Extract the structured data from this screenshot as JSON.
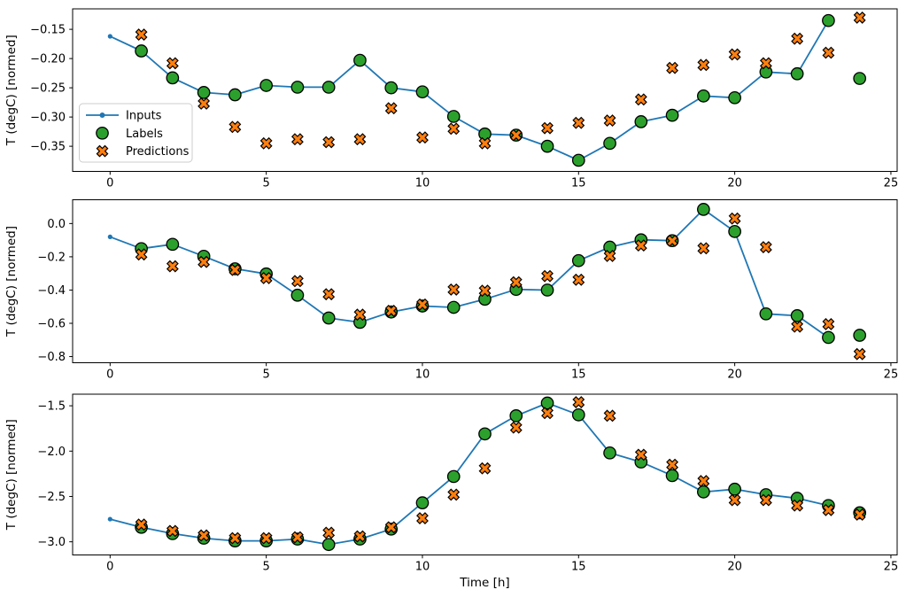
{
  "figure": {
    "xlabel": "Time [h]",
    "ylabel": "T (degC) [normed]",
    "background_color": "#ffffff",
    "colors": {
      "inputs_line": "#1f77b4",
      "labels_marker": "#2ca02c",
      "predictions_marker": "#ff7f0e",
      "marker_edge": "#000000",
      "legend_border": "#cccccc"
    },
    "legend": {
      "items": [
        {
          "label": "Inputs",
          "marker": "line-with-dot",
          "color": "#1f77b4"
        },
        {
          "label": "Labels",
          "marker": "circle",
          "color": "#2ca02c"
        },
        {
          "label": "Predictions",
          "marker": "thick-x",
          "color": "#ff7f0e"
        }
      ],
      "position": "left-middle-of-first-subplot"
    }
  },
  "chart_data": [
    {
      "type": "line",
      "title": "",
      "ylabel": "T (degC) [normed]",
      "xlim": [
        -1.2,
        25.2
      ],
      "ylim": [
        -0.393,
        -0.115
      ],
      "xticks": [
        0,
        5,
        10,
        15,
        20,
        25
      ],
      "xtick_labels": [
        "0",
        "5",
        "10",
        "15",
        "20",
        "25"
      ],
      "yticks": [
        -0.15,
        -0.2,
        -0.25,
        -0.3,
        -0.35
      ],
      "ytick_labels": [
        "−0.15",
        "−0.20",
        "−0.25",
        "−0.30",
        "−0.35"
      ],
      "grid": false,
      "legend_visible": true,
      "series": [
        {
          "name": "Inputs",
          "kind": "line",
          "x": [
            0,
            1,
            2,
            3,
            4,
            5,
            6,
            7,
            8,
            9,
            10,
            11,
            12,
            13,
            14,
            15,
            16,
            17,
            18,
            19,
            20,
            21,
            22,
            23
          ],
          "y": [
            -0.162,
            -0.187,
            -0.233,
            -0.258,
            -0.262,
            -0.246,
            -0.249,
            -0.249,
            -0.203,
            -0.25,
            -0.257,
            -0.299,
            -0.329,
            -0.331,
            -0.35,
            -0.374,
            -0.345,
            -0.308,
            -0.297,
            -0.264,
            -0.267,
            -0.223,
            -0.226,
            -0.135
          ]
        },
        {
          "name": "Labels",
          "kind": "scatter-circle",
          "x": [
            1,
            2,
            3,
            4,
            5,
            6,
            7,
            8,
            9,
            10,
            11,
            12,
            13,
            14,
            15,
            16,
            17,
            18,
            19,
            20,
            21,
            22,
            23,
            24
          ],
          "y": [
            -0.187,
            -0.233,
            -0.258,
            -0.262,
            -0.246,
            -0.249,
            -0.249,
            -0.203,
            -0.25,
            -0.257,
            -0.299,
            -0.329,
            -0.331,
            -0.35,
            -0.374,
            -0.345,
            -0.308,
            -0.297,
            -0.264,
            -0.267,
            -0.223,
            -0.226,
            -0.135,
            -0.234
          ]
        },
        {
          "name": "Predictions",
          "kind": "scatter-x",
          "x": [
            1,
            2,
            3,
            4,
            5,
            6,
            7,
            8,
            9,
            10,
            11,
            12,
            13,
            14,
            15,
            16,
            17,
            18,
            19,
            20,
            21,
            22,
            23,
            24
          ],
          "y": [
            -0.159,
            -0.208,
            -0.277,
            -0.317,
            -0.345,
            -0.338,
            -0.343,
            -0.338,
            -0.285,
            -0.335,
            -0.32,
            -0.345,
            -0.331,
            -0.319,
            -0.31,
            -0.306,
            -0.27,
            -0.216,
            -0.211,
            -0.193,
            -0.208,
            -0.166,
            -0.19,
            -0.13
          ]
        }
      ]
    },
    {
      "type": "line",
      "title": "",
      "ylabel": "T (degC) [normed]",
      "xlim": [
        -1.2,
        25.2
      ],
      "ylim": [
        -0.837,
        0.143
      ],
      "xticks": [
        0,
        5,
        10,
        15,
        20,
        25
      ],
      "xtick_labels": [
        "0",
        "5",
        "10",
        "15",
        "20",
        "25"
      ],
      "yticks": [
        0.0,
        -0.2,
        -0.4,
        -0.6,
        -0.8
      ],
      "ytick_labels": [
        "0.0",
        "−0.2",
        "−0.4",
        "−0.6",
        "−0.8"
      ],
      "grid": false,
      "legend_visible": false,
      "series": [
        {
          "name": "Inputs",
          "kind": "line",
          "x": [
            0,
            1,
            2,
            3,
            4,
            5,
            6,
            7,
            8,
            9,
            10,
            11,
            12,
            13,
            14,
            15,
            16,
            17,
            18,
            19,
            20,
            21,
            22,
            23
          ],
          "y": [
            -0.08,
            -0.151,
            -0.125,
            -0.197,
            -0.272,
            -0.303,
            -0.431,
            -0.568,
            -0.594,
            -0.532,
            -0.496,
            -0.504,
            -0.455,
            -0.396,
            -0.4,
            -0.223,
            -0.142,
            -0.098,
            -0.103,
            0.085,
            -0.048,
            -0.543,
            -0.554,
            -0.685
          ]
        },
        {
          "name": "Labels",
          "kind": "scatter-circle",
          "x": [
            1,
            2,
            3,
            4,
            5,
            6,
            7,
            8,
            9,
            10,
            11,
            12,
            13,
            14,
            15,
            16,
            17,
            18,
            19,
            20,
            21,
            22,
            23,
            24
          ],
          "y": [
            -0.151,
            -0.125,
            -0.197,
            -0.272,
            -0.303,
            -0.431,
            -0.568,
            -0.594,
            -0.532,
            -0.496,
            -0.504,
            -0.455,
            -0.396,
            -0.4,
            -0.223,
            -0.142,
            -0.098,
            -0.103,
            0.085,
            -0.048,
            -0.543,
            -0.554,
            -0.685,
            -0.672
          ]
        },
        {
          "name": "Predictions",
          "kind": "scatter-x",
          "x": [
            1,
            2,
            3,
            4,
            5,
            6,
            7,
            8,
            9,
            10,
            11,
            12,
            13,
            14,
            15,
            16,
            17,
            18,
            19,
            20,
            21,
            22,
            23,
            24
          ],
          "y": [
            -0.186,
            -0.257,
            -0.231,
            -0.279,
            -0.328,
            -0.346,
            -0.425,
            -0.548,
            -0.525,
            -0.487,
            -0.397,
            -0.404,
            -0.353,
            -0.316,
            -0.338,
            -0.195,
            -0.132,
            -0.104,
            -0.149,
            0.03,
            -0.142,
            -0.62,
            -0.605,
            -0.785
          ]
        }
      ]
    },
    {
      "type": "line",
      "title": "",
      "ylabel": "T (degC) [normed]",
      "xlabel": "Time [h]",
      "xlim": [
        -1.2,
        25.2
      ],
      "ylim": [
        -3.145,
        -1.372
      ],
      "xticks": [
        0,
        5,
        10,
        15,
        20,
        25
      ],
      "xtick_labels": [
        "0",
        "5",
        "10",
        "15",
        "20",
        "25"
      ],
      "yticks": [
        -1.5,
        -2.0,
        -2.5,
        -3.0
      ],
      "ytick_labels": [
        "−1.5",
        "−2.0",
        "−2.5",
        "−3.0"
      ],
      "grid": false,
      "legend_visible": false,
      "series": [
        {
          "name": "Inputs",
          "kind": "line",
          "x": [
            0,
            1,
            2,
            3,
            4,
            5,
            6,
            7,
            8,
            9,
            10,
            11,
            12,
            13,
            14,
            15,
            16,
            17,
            18,
            19,
            20,
            21,
            22,
            23
          ],
          "y": [
            -2.75,
            -2.84,
            -2.91,
            -2.96,
            -2.99,
            -2.99,
            -2.97,
            -3.03,
            -2.97,
            -2.86,
            -2.57,
            -2.28,
            -1.81,
            -1.61,
            -1.47,
            -1.6,
            -2.02,
            -2.12,
            -2.27,
            -2.45,
            -2.42,
            -2.48,
            -2.52,
            -2.6
          ]
        },
        {
          "name": "Labels",
          "kind": "scatter-circle",
          "x": [
            1,
            2,
            3,
            4,
            5,
            6,
            7,
            8,
            9,
            10,
            11,
            12,
            13,
            14,
            15,
            16,
            17,
            18,
            19,
            20,
            21,
            22,
            23,
            24
          ],
          "y": [
            -2.84,
            -2.91,
            -2.96,
            -2.99,
            -2.99,
            -2.97,
            -3.03,
            -2.97,
            -2.86,
            -2.57,
            -2.28,
            -1.81,
            -1.61,
            -1.47,
            -1.6,
            -2.02,
            -2.12,
            -2.27,
            -2.45,
            -2.42,
            -2.48,
            -2.52,
            -2.6,
            -2.68
          ]
        },
        {
          "name": "Predictions",
          "kind": "scatter-x",
          "x": [
            1,
            2,
            3,
            4,
            5,
            6,
            7,
            8,
            9,
            10,
            11,
            12,
            13,
            14,
            15,
            16,
            17,
            18,
            19,
            20,
            21,
            22,
            23,
            24
          ],
          "y": [
            -2.81,
            -2.88,
            -2.93,
            -2.96,
            -2.96,
            -2.95,
            -2.9,
            -2.94,
            -2.84,
            -2.74,
            -2.48,
            -2.19,
            -1.74,
            -1.58,
            -1.46,
            -1.61,
            -2.04,
            -2.15,
            -2.33,
            -2.54,
            -2.54,
            -2.6,
            -2.65,
            -2.7
          ]
        }
      ]
    }
  ]
}
